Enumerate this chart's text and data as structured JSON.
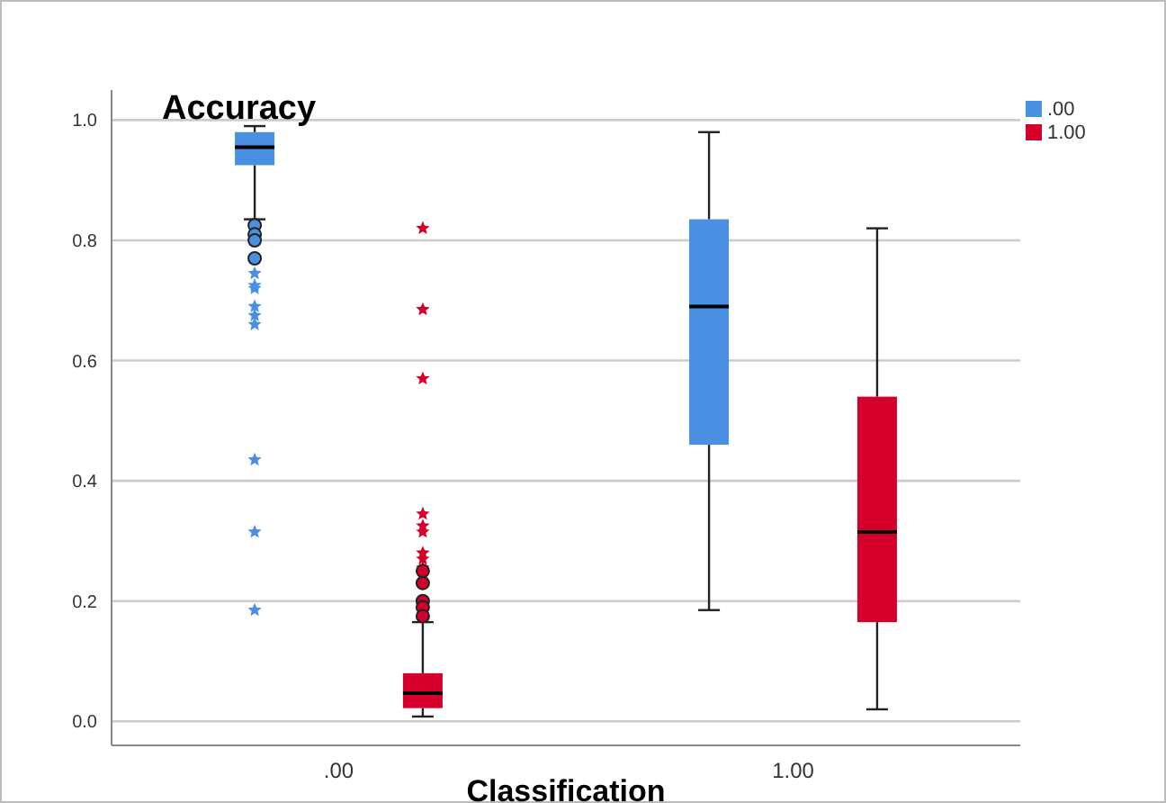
{
  "chart_data": {
    "type": "box",
    "ylabel": "Accuracy",
    "xlabel": "Classification",
    "categories": [
      ".00",
      "1.00"
    ],
    "ylim": [
      -0.04,
      1.05
    ],
    "yticks": [
      {
        "value": 0,
        "label": "0.0"
      },
      {
        "value": 0.2,
        "label": "0.2"
      },
      {
        "value": 0.4,
        "label": "0.4"
      },
      {
        "value": 0.6,
        "label": "0.6"
      },
      {
        "value": 0.8,
        "label": "0.8"
      },
      {
        "value": 1,
        "label": "1.0"
      }
    ],
    "grid": "y",
    "legend": "top right",
    "series": [
      {
        "name": ".00",
        "color": "#4a90e2",
        "boxes": [
          {
            "low": 0.835,
            "q1": 0.925,
            "median": 0.955,
            "q3": 0.98,
            "high": 0.99,
            "outliers": [
              0.825,
              0.81,
              0.8,
              0.77,
              0.745,
              0.725,
              0.72,
              0.69,
              0.675,
              0.66,
              0.435,
              0.315,
              0.185
            ]
          },
          {
            "low": 0.185,
            "q1": 0.46,
            "median": 0.69,
            "q3": 0.835,
            "high": 0.98
          }
        ]
      },
      {
        "name": "1.00",
        "color": "#d4002b",
        "boxes": [
          {
            "low": 0.008,
            "q1": 0.022,
            "median": 0.047,
            "q3": 0.08,
            "high": 0.165,
            "outliers": [
              0.82,
              0.685,
              0.57,
              0.345,
              0.325,
              0.315,
              0.28,
              0.27,
              0.255,
              0.25,
              0.23,
              0.2,
              0.19,
              0.175
            ]
          },
          {
            "low": 0.02,
            "q1": 0.165,
            "median": 0.315,
            "q3": 0.54,
            "high": 0.82
          }
        ]
      }
    ]
  }
}
